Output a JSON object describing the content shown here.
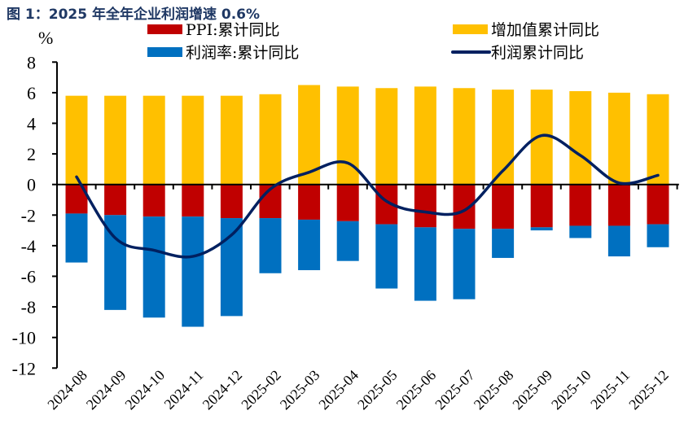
{
  "title": "图 1：2025 年全年企业利润增速 0.6%",
  "chart_data": {
    "type": "bar",
    "subtype": "stacked bar with line overlay",
    "title": "图 1：2025 年全年企业利润增速 0.6%",
    "ylabel": "%",
    "xlabel": "",
    "ylim": [
      -12,
      8
    ],
    "yticks": [
      8,
      6,
      4,
      2,
      0,
      -2,
      -4,
      -6,
      -8,
      -10,
      -12
    ],
    "grid": false,
    "legend_position": "top",
    "categories": [
      "2024-08",
      "2024-09",
      "2024-10",
      "2024-11",
      "2024-12",
      "2025-02",
      "2025-03",
      "2025-04",
      "2025-05",
      "2025-06",
      "2025-07",
      "2025-08",
      "2025-09",
      "2025-10",
      "2025-11",
      "2025-12"
    ],
    "series": [
      {
        "name": "PPI:累计同比",
        "kind": "bar",
        "color": "#c00000",
        "values": [
          -1.9,
          -2.0,
          -2.1,
          -2.1,
          -2.2,
          -2.2,
          -2.3,
          -2.4,
          -2.6,
          -2.8,
          -2.9,
          -2.9,
          -2.8,
          -2.7,
          -2.7,
          -2.6
        ]
      },
      {
        "name": "增加值累计同比",
        "kind": "bar",
        "color": "#ffc000",
        "values": [
          5.8,
          5.8,
          5.8,
          5.8,
          5.8,
          5.9,
          6.5,
          6.4,
          6.3,
          6.4,
          6.3,
          6.2,
          6.2,
          6.1,
          6.0,
          5.9
        ]
      },
      {
        "name": "利润率:累计同比",
        "kind": "bar",
        "color": "#0070c0",
        "values": [
          -3.2,
          -6.2,
          -6.6,
          -7.2,
          -6.4,
          -3.6,
          -3.3,
          -2.6,
          -4.2,
          -4.8,
          -4.6,
          -1.9,
          -0.2,
          -0.8,
          -2.0,
          -1.5
        ]
      },
      {
        "name": "利润累计同比",
        "kind": "line",
        "color": "#002060",
        "values": [
          0.5,
          -3.5,
          -4.3,
          -4.7,
          -3.3,
          -0.3,
          0.8,
          1.4,
          -1.1,
          -1.8,
          -1.7,
          0.9,
          3.2,
          1.9,
          0.1,
          0.6
        ]
      }
    ]
  }
}
